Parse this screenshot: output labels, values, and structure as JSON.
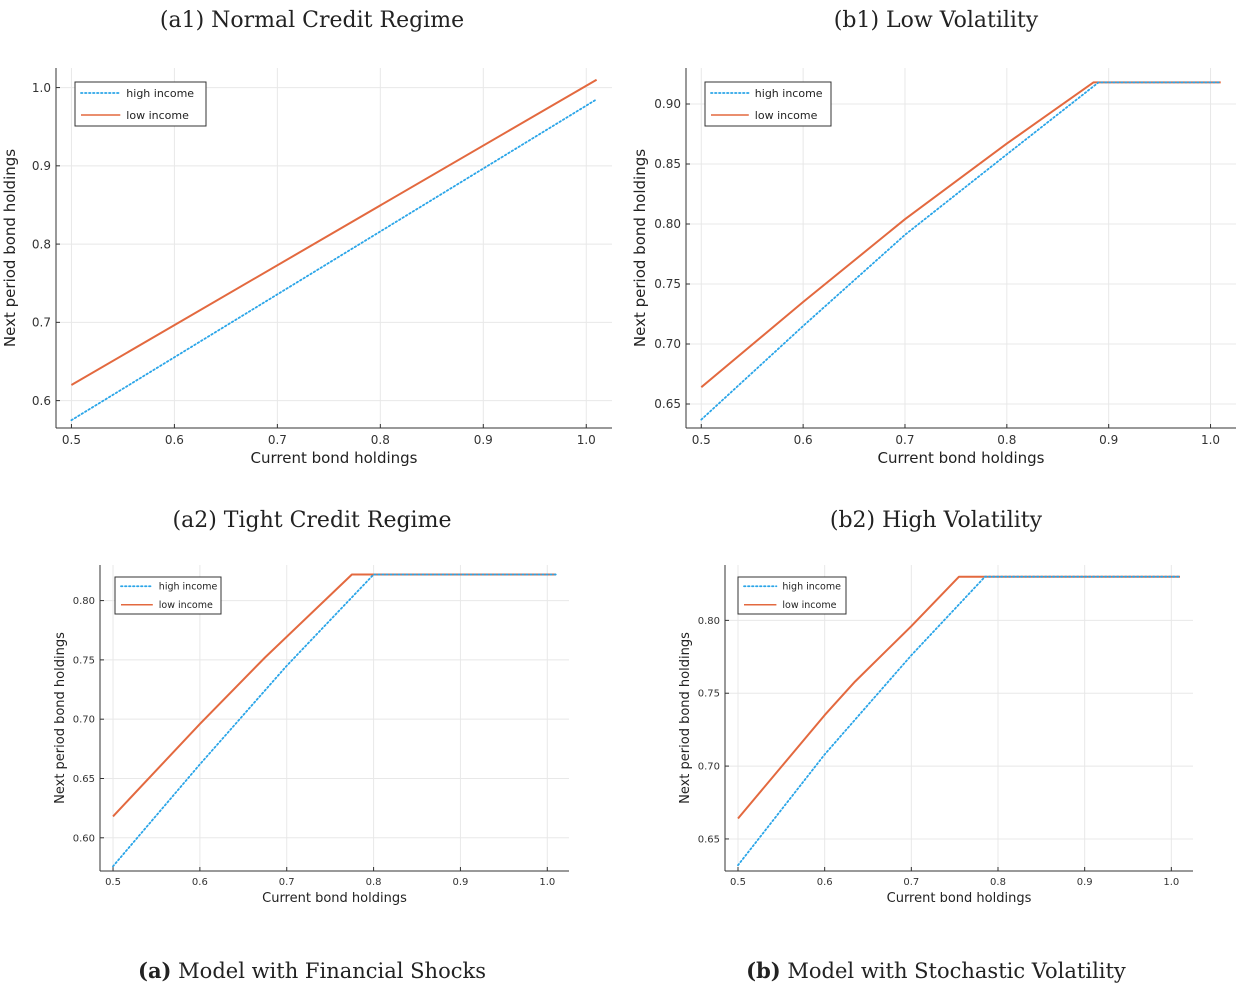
{
  "colors": {
    "high": "#2aa5e8",
    "low": "#e3693f",
    "grid": "#e8e8e8",
    "axis": "#333333"
  },
  "captions": {
    "a_prefix": "(a)",
    "a_text": " Model with Financial Shocks",
    "b_prefix": "(b)",
    "b_text": " Model with Stochastic Volatility"
  },
  "chart_data": [
    {
      "id": "a1",
      "type": "line",
      "title": "(a1) Normal Credit Regime",
      "xlabel": "Current bond holdings",
      "ylabel": "Next period bond holdings",
      "xlim": [
        0.485,
        1.025
      ],
      "ylim": [
        0.565,
        1.025
      ],
      "xticks": [
        0.5,
        0.6,
        0.7,
        0.8,
        0.9,
        1.0
      ],
      "xtick_labels": [
        "0.5",
        "0.6",
        "0.7",
        "0.8",
        "0.9",
        "1.0"
      ],
      "yticks": [
        0.6,
        0.7,
        0.8,
        0.9,
        1.0
      ],
      "ytick_labels": [
        "0.6",
        "0.7",
        "0.8",
        "0.9",
        "1.0"
      ],
      "grid": true,
      "legend_position": "top-left",
      "series": [
        {
          "name": "high income",
          "style": "dotted",
          "x": [
            0.5,
            1.01
          ],
          "y": [
            0.575,
            0.985
          ]
        },
        {
          "name": "low income",
          "style": "solid",
          "x": [
            0.5,
            1.01
          ],
          "y": [
            0.62,
            1.01
          ]
        }
      ]
    },
    {
      "id": "b1",
      "type": "line",
      "title": "(b1) Low Volatility",
      "xlabel": "Current bond holdings",
      "ylabel": "Next period bond holdings",
      "xlim": [
        0.485,
        1.025
      ],
      "ylim": [
        0.63,
        0.93
      ],
      "xticks": [
        0.5,
        0.6,
        0.7,
        0.8,
        0.9,
        1.0
      ],
      "xtick_labels": [
        "0.5",
        "0.6",
        "0.7",
        "0.8",
        "0.9",
        "1.0"
      ],
      "yticks": [
        0.65,
        0.7,
        0.75,
        0.8,
        0.85,
        0.9
      ],
      "ytick_labels": [
        "0.65",
        "0.70",
        "0.75",
        "0.80",
        "0.85",
        "0.90"
      ],
      "grid": true,
      "legend_position": "top-left",
      "series": [
        {
          "name": "high income",
          "style": "dotted",
          "x": [
            0.5,
            0.6,
            0.7,
            0.8,
            0.89,
            1.01
          ],
          "y": [
            0.637,
            0.715,
            0.791,
            0.858,
            0.918,
            0.918
          ]
        },
        {
          "name": "low income",
          "style": "solid",
          "x": [
            0.5,
            0.6,
            0.7,
            0.8,
            0.885,
            1.01
          ],
          "y": [
            0.664,
            0.735,
            0.804,
            0.867,
            0.918,
            0.918
          ]
        }
      ]
    },
    {
      "id": "a2",
      "type": "line",
      "title": "(a2) Tight Credit Regime",
      "xlabel": "Current bond holdings",
      "ylabel": "Next period bond holdings",
      "xlim": [
        0.485,
        1.025
      ],
      "ylim": [
        0.572,
        0.83
      ],
      "xticks": [
        0.5,
        0.6,
        0.7,
        0.8,
        0.9,
        1.0
      ],
      "xtick_labels": [
        "0.5",
        "0.6",
        "0.7",
        "0.8",
        "0.9",
        "1.0"
      ],
      "yticks": [
        0.6,
        0.65,
        0.7,
        0.75,
        0.8
      ],
      "ytick_labels": [
        "0.60",
        "0.65",
        "0.70",
        "0.75",
        "0.80"
      ],
      "grid": true,
      "legend_position": "top-left",
      "series": [
        {
          "name": "high income",
          "style": "dotted",
          "x": [
            0.5,
            0.6,
            0.7,
            0.8,
            1.01
          ],
          "y": [
            0.576,
            0.662,
            0.745,
            0.822,
            0.822
          ]
        },
        {
          "name": "low income",
          "style": "solid",
          "x": [
            0.5,
            0.6,
            0.675,
            0.775,
            1.01
          ],
          "y": [
            0.618,
            0.696,
            0.752,
            0.822,
            0.822
          ]
        }
      ]
    },
    {
      "id": "b2",
      "type": "line",
      "title": "(b2) High Volatility",
      "xlabel": "Current bond holdings",
      "ylabel": "Next period bond holdings",
      "xlim": [
        0.485,
        1.025
      ],
      "ylim": [
        0.628,
        0.838
      ],
      "xticks": [
        0.5,
        0.6,
        0.7,
        0.8,
        0.9,
        1.0
      ],
      "xtick_labels": [
        "0.5",
        "0.6",
        "0.7",
        "0.8",
        "0.9",
        "1.0"
      ],
      "yticks": [
        0.65,
        0.7,
        0.75,
        0.8
      ],
      "ytick_labels": [
        "0.65",
        "0.70",
        "0.75",
        "0.80"
      ],
      "grid": true,
      "legend_position": "top-left",
      "series": [
        {
          "name": "high income",
          "style": "dotted",
          "x": [
            0.5,
            0.6,
            0.7,
            0.785,
            1.01
          ],
          "y": [
            0.632,
            0.708,
            0.776,
            0.83,
            0.83
          ]
        },
        {
          "name": "low income",
          "style": "solid",
          "x": [
            0.5,
            0.6,
            0.635,
            0.7,
            0.755,
            1.01
          ],
          "y": [
            0.664,
            0.735,
            0.758,
            0.796,
            0.83,
            0.83
          ]
        }
      ]
    }
  ]
}
